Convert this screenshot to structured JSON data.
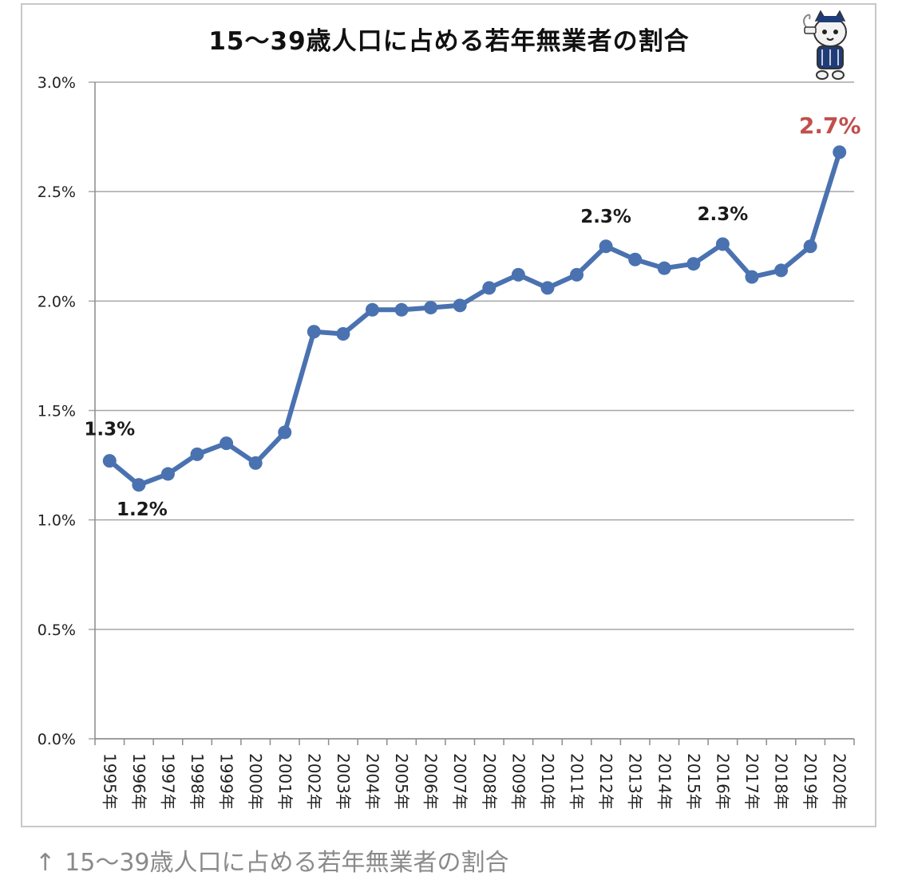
{
  "caption": {
    "arrow": "↑",
    "text": "15〜39歳人口に占める若年無業者の割合"
  },
  "mascot": {
    "icon": "mascot-cat-icon"
  },
  "colors": {
    "line": "#4a72b0",
    "grid": "#a6a6a6",
    "highlight": "#c0504d",
    "label": "#1a1a1a"
  },
  "chart_data": {
    "type": "line",
    "title": "15〜39歳人口に占める若年無業者の割合",
    "xlabel": "",
    "ylabel": "",
    "ylim": [
      0,
      0.03
    ],
    "yticks": [
      {
        "value": 0.0,
        "label": "0.0%"
      },
      {
        "value": 0.005,
        "label": "0.5%"
      },
      {
        "value": 0.01,
        "label": "1.0%"
      },
      {
        "value": 0.015,
        "label": "1.5%"
      },
      {
        "value": 0.02,
        "label": "2.0%"
      },
      {
        "value": 0.025,
        "label": "2.5%"
      },
      {
        "value": 0.03,
        "label": "3.0%"
      }
    ],
    "grid": true,
    "legend": "none",
    "categories": [
      "1995年",
      "1996年",
      "1997年",
      "1998年",
      "1999年",
      "2000年",
      "2001年",
      "2002年",
      "2003年",
      "2004年",
      "2005年",
      "2006年",
      "2007年",
      "2008年",
      "2009年",
      "2010年",
      "2011年",
      "2012年",
      "2013年",
      "2014年",
      "2015年",
      "2016年",
      "2017年",
      "2018年",
      "2019年",
      "2020年"
    ],
    "series": [
      {
        "values": [
          0.0127,
          0.0116,
          0.0121,
          0.013,
          0.0135,
          0.0126,
          0.014,
          0.0186,
          0.0185,
          0.0196,
          0.0196,
          0.0197,
          0.0198,
          0.0206,
          0.0212,
          0.0206,
          0.0212,
          0.0225,
          0.0219,
          0.0215,
          0.0217,
          0.0226,
          0.0211,
          0.0214,
          0.0225,
          0.0268
        ]
      }
    ],
    "annotations": [
      {
        "index": 0,
        "text": "1.3%",
        "highlight": false
      },
      {
        "index": 1,
        "text": "1.2%",
        "highlight": false
      },
      {
        "index": 17,
        "text": "2.3%",
        "highlight": false
      },
      {
        "index": 21,
        "text": "2.3%",
        "highlight": false
      },
      {
        "index": 25,
        "text": "2.7%",
        "highlight": true
      }
    ]
  }
}
